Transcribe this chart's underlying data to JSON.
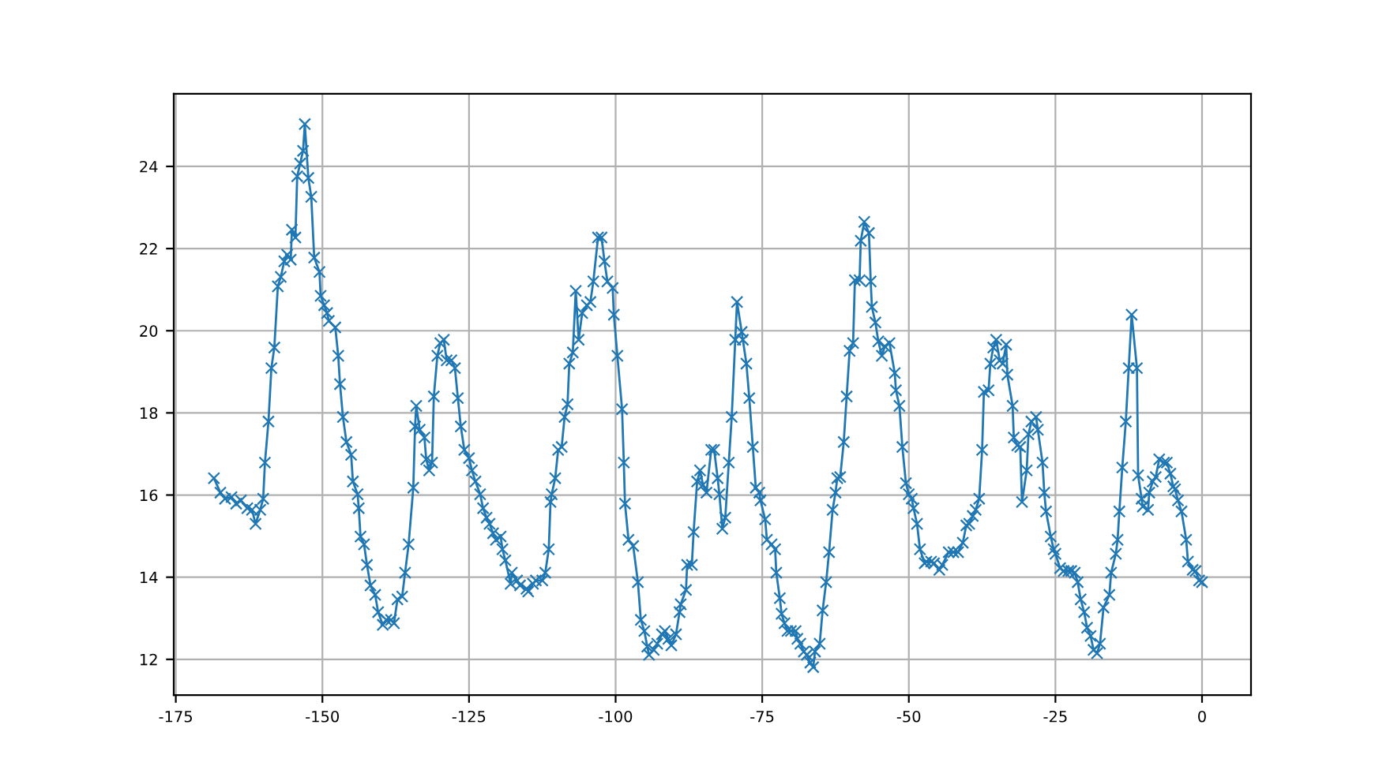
{
  "chart_data": {
    "type": "line",
    "marker": "cross",
    "line_style": "solid",
    "grid": true,
    "xlim": [
      -175.35,
      8.35
    ],
    "ylim": [
      11.13,
      25.77
    ],
    "xticks": [
      -175,
      -150,
      -125,
      -100,
      -75,
      -50,
      -25,
      0
    ],
    "yticks": [
      12,
      14,
      16,
      18,
      20,
      22,
      24
    ],
    "series": [
      {
        "color": "#1f77b4",
        "x": [
          -168.5,
          -167.4,
          -166.6,
          -165.5,
          -164.7,
          -163.9,
          -162.8,
          -162.0,
          -161.4,
          -160.6,
          -160.1,
          -159.8,
          -159.2,
          -158.7,
          -158.2,
          -157.6,
          -157.1,
          -156.5,
          -156.0,
          -155.4,
          -155.2,
          -154.6,
          -154.3,
          -153.8,
          -153.3,
          -153.0,
          -152.4,
          -151.9,
          -151.4,
          -150.5,
          -150.3,
          -149.7,
          -149.2,
          -148.9,
          -147.8,
          -147.3,
          -147.0,
          -146.5,
          -145.9,
          -145.1,
          -144.8,
          -144.0,
          -143.8,
          -143.5,
          -142.9,
          -142.4,
          -141.8,
          -141.0,
          -140.5,
          -139.7,
          -139.1,
          -138.3,
          -137.8,
          -137.2,
          -136.4,
          -135.9,
          -135.3,
          -134.5,
          -134.2,
          -134.0,
          -133.4,
          -132.6,
          -132.3,
          -131.8,
          -131.3,
          -131.0,
          -130.4,
          -129.9,
          -129.3,
          -128.8,
          -128.0,
          -127.4,
          -126.9,
          -126.4,
          -125.8,
          -125.0,
          -124.5,
          -123.9,
          -123.1,
          -122.6,
          -122.0,
          -121.5,
          -120.9,
          -120.4,
          -119.6,
          -119.3,
          -118.8,
          -117.9,
          -117.7,
          -116.8,
          -116.3,
          -115.2,
          -114.9,
          -114.1,
          -113.6,
          -112.5,
          -112.0,
          -111.4,
          -111.1,
          -110.9,
          -110.3,
          -109.8,
          -109.2,
          -108.7,
          -108.2,
          -107.9,
          -107.3,
          -106.8,
          -106.3,
          -105.7,
          -104.9,
          -104.3,
          -103.8,
          -103.0,
          -102.4,
          -101.9,
          -101.4,
          -100.5,
          -100.3,
          -99.7,
          -98.9,
          -98.6,
          -98.4,
          -97.8,
          -97.0,
          -96.2,
          -95.7,
          -95.1,
          -94.6,
          -94.3,
          -93.5,
          -92.9,
          -92.1,
          -91.6,
          -91.0,
          -90.5,
          -89.7,
          -89.1,
          -88.9,
          -88.0,
          -87.8,
          -87.0,
          -86.7,
          -86.1,
          -85.6,
          -85.1,
          -84.5,
          -83.7,
          -83.2,
          -82.6,
          -82.3,
          -81.8,
          -81.3,
          -80.7,
          -80.2,
          -79.6,
          -79.3,
          -78.5,
          -78.3,
          -77.7,
          -77.2,
          -76.6,
          -76.1,
          -75.5,
          -75.3,
          -74.5,
          -74.2,
          -73.4,
          -72.8,
          -72.6,
          -72.0,
          -71.7,
          -71.2,
          -70.7,
          -70.1,
          -69.3,
          -69.0,
          -68.5,
          -67.9,
          -67.4,
          -66.8,
          -66.3,
          -66.0,
          -65.2,
          -64.7,
          -64.1,
          -63.6,
          -63.0,
          -62.5,
          -62.2,
          -61.7,
          -61.1,
          -60.6,
          -60.1,
          -59.5,
          -59.2,
          -58.4,
          -58.2,
          -57.6,
          -56.8,
          -56.5,
          -56.3,
          -55.7,
          -55.2,
          -54.6,
          -54.1,
          -53.3,
          -52.4,
          -52.2,
          -51.6,
          -51.1,
          -50.5,
          -50.0,
          -49.5,
          -49.2,
          -48.6,
          -48.1,
          -47.3,
          -47.0,
          -46.2,
          -45.7,
          -44.8,
          -44.3,
          -43.2,
          -42.4,
          -41.6,
          -40.8,
          -40.2,
          -39.7,
          -39.1,
          -38.6,
          -38.0,
          -37.5,
          -37.2,
          -36.4,
          -36.1,
          -35.6,
          -35.1,
          -34.5,
          -34.0,
          -33.4,
          -33.2,
          -32.3,
          -32.1,
          -31.5,
          -31.0,
          -30.7,
          -29.9,
          -29.6,
          -29.1,
          -28.3,
          -28.0,
          -27.2,
          -26.9,
          -26.6,
          -25.8,
          -25.3,
          -25.0,
          -24.2,
          -23.6,
          -22.8,
          -22.3,
          -21.7,
          -21.2,
          -20.7,
          -20.1,
          -19.6,
          -19.0,
          -18.5,
          -17.9,
          -17.4,
          -16.8,
          -15.8,
          -15.5,
          -14.7,
          -14.4,
          -14.1,
          -13.6,
          -13.0,
          -12.5,
          -12.0,
          -11.1,
          -10.9,
          -10.3,
          -10.1,
          -9.2,
          -9.0,
          -8.4,
          -7.9,
          -7.3,
          -6.5,
          -6.0,
          -5.4,
          -4.9,
          -4.6,
          -4.1,
          -3.5,
          -2.7,
          -2.4,
          -1.6,
          -1.1,
          -0.5,
          0
        ],
        "values": [
          16.41,
          16.06,
          15.91,
          15.95,
          15.79,
          15.87,
          15.68,
          15.64,
          15.3,
          15.64,
          15.91,
          16.79,
          17.79,
          19.09,
          19.59,
          21.08,
          21.31,
          21.69,
          21.85,
          21.73,
          22.46,
          22.27,
          23.76,
          24.07,
          24.38,
          25.03,
          23.72,
          23.26,
          21.78,
          21.43,
          20.85,
          20.62,
          20.43,
          20.24,
          20.08,
          19.39,
          18.7,
          17.9,
          17.29,
          16.98,
          16.33,
          16.02,
          15.68,
          14.99,
          14.8,
          14.3,
          13.8,
          13.57,
          13.15,
          12.84,
          12.96,
          12.96,
          12.88,
          13.46,
          13.53,
          14.11,
          14.8,
          16.18,
          17.67,
          18.17,
          17.59,
          17.4,
          16.87,
          16.6,
          16.79,
          18.4,
          19.39,
          19.7,
          19.78,
          19.28,
          19.28,
          19.09,
          18.36,
          17.67,
          17.1,
          16.9,
          16.6,
          16.33,
          16.02,
          15.68,
          15.45,
          15.3,
          15.07,
          14.91,
          14.99,
          14.68,
          14.41,
          13.84,
          14.11,
          13.92,
          13.8,
          13.72,
          13.65,
          13.84,
          13.92,
          13.92,
          14.11,
          14.68,
          15.83,
          16.02,
          16.41,
          17.1,
          17.17,
          17.9,
          18.21,
          19.2,
          19.47,
          20.97,
          19.78,
          20.43,
          20.62,
          20.7,
          21.2,
          22.27,
          22.27,
          21.69,
          21.2,
          21.04,
          20.39,
          19.39,
          18.09,
          16.79,
          15.79,
          14.91,
          14.76,
          13.88,
          12.96,
          12.69,
          12.31,
          12.11,
          12.23,
          12.38,
          12.61,
          12.69,
          12.5,
          12.34,
          12.61,
          13.15,
          13.34,
          13.69,
          14.3,
          14.3,
          15.1,
          16.33,
          16.6,
          16.25,
          16.06,
          17.1,
          17.1,
          16.41,
          16.02,
          15.18,
          15.45,
          16.79,
          17.9,
          19.78,
          20.7,
          19.97,
          19.78,
          19.2,
          18.36,
          17.17,
          16.18,
          16.06,
          15.87,
          15.41,
          14.91,
          14.8,
          14.68,
          14.11,
          13.49,
          13.11,
          12.88,
          12.69,
          12.69,
          12.69,
          12.5,
          12.38,
          12.19,
          12.11,
          11.92,
          11.81,
          12.19,
          12.38,
          13.19,
          13.88,
          14.61,
          15.64,
          16.06,
          16.41,
          16.44,
          17.29,
          18.4,
          19.51,
          19.7,
          21.23,
          21.23,
          22.19,
          22.65,
          22.38,
          21.2,
          20.58,
          20.2,
          19.74,
          19.39,
          19.62,
          19.7,
          18.97,
          18.55,
          18.17,
          17.17,
          16.29,
          16.02,
          15.91,
          15.68,
          15.3,
          14.68,
          14.34,
          14.38,
          14.38,
          14.34,
          14.18,
          14.3,
          14.61,
          14.61,
          14.61,
          14.84,
          15.26,
          15.3,
          15.49,
          15.64,
          15.91,
          17.1,
          18.51,
          18.55,
          19.2,
          19.59,
          19.78,
          19.28,
          19.2,
          19.66,
          18.93,
          18.17,
          17.4,
          17.21,
          17.17,
          15.83,
          16.6,
          17.48,
          17.79,
          17.9,
          17.59,
          16.79,
          16.06,
          15.6,
          14.99,
          14.68,
          14.57,
          14.22,
          14.15,
          14.15,
          14.15,
          14.11,
          13.88,
          13.46,
          13.15,
          12.77,
          12.57,
          12.23,
          12.15,
          12.38,
          13.26,
          13.57,
          14.11,
          14.57,
          14.91,
          15.6,
          16.67,
          17.79,
          19.09,
          20.39,
          19.09,
          16.48,
          15.91,
          15.72,
          15.64,
          16.06,
          16.33,
          16.44,
          16.87,
          16.79,
          16.79,
          16.52,
          16.21,
          16.14,
          15.87,
          15.6,
          14.91,
          14.38,
          14.18,
          14.15,
          13.92,
          13.88
        ]
      }
    ]
  }
}
